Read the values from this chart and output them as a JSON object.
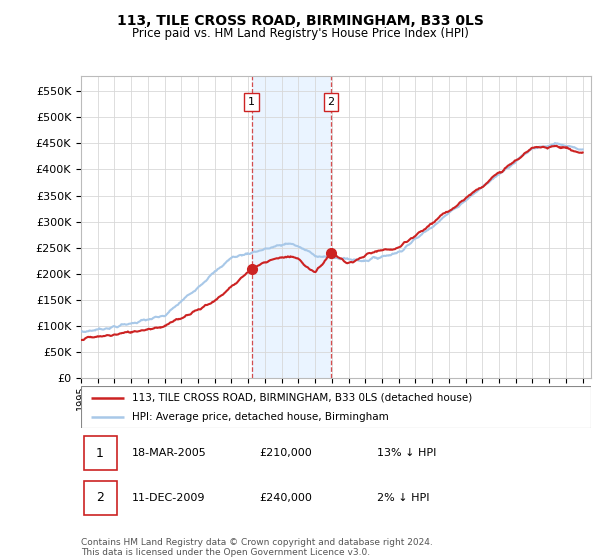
{
  "title": "113, TILE CROSS ROAD, BIRMINGHAM, B33 0LS",
  "subtitle": "Price paid vs. HM Land Registry's House Price Index (HPI)",
  "ylim": [
    0,
    580000
  ],
  "yticks": [
    0,
    50000,
    100000,
    150000,
    200000,
    250000,
    300000,
    350000,
    400000,
    450000,
    500000,
    550000
  ],
  "ytick_labels": [
    "£0",
    "£50K",
    "£100K",
    "£150K",
    "£200K",
    "£250K",
    "£300K",
    "£350K",
    "£400K",
    "£450K",
    "£500K",
    "£550K"
  ],
  "hpi_color": "#a8c8e8",
  "price_color": "#cc2222",
  "transaction1_x": 2005.21,
  "transaction1_price": 210000,
  "transaction2_x": 2009.95,
  "transaction2_price": 240000,
  "legend_line1": "113, TILE CROSS ROAD, BIRMINGHAM, B33 0LS (detached house)",
  "legend_line2": "HPI: Average price, detached house, Birmingham",
  "footnote": "Contains HM Land Registry data © Crown copyright and database right 2024.\nThis data is licensed under the Open Government Licence v3.0.",
  "bg_color": "#ffffff",
  "grid_color": "#d8d8d8",
  "shade_color": "#ddeeff",
  "box_border_color": "#cc2222",
  "table_row1": [
    "1",
    "18-MAR-2005",
    "£210,000",
    "13% ↓ HPI"
  ],
  "table_row2": [
    "2",
    "11-DEC-2009",
    "£240,000",
    "2% ↓ HPI"
  ]
}
